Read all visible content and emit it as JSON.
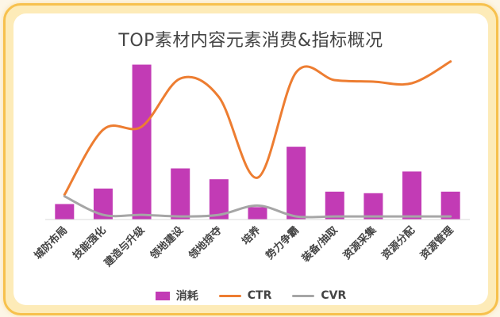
{
  "chart_data": {
    "type": "bar",
    "title": "TOP素材内容元素消费&指标概况",
    "categories": [
      "城防布局",
      "技能强化",
      "建造与升级",
      "领地建设",
      "领地掠夺",
      "培养",
      "势力争霸",
      "装备/抽取",
      "资源采集",
      "资源分配",
      "资源管理"
    ],
    "series": [
      {
        "name": "消耗",
        "kind": "bar",
        "color": "#c23bb5",
        "values": [
          10,
          20,
          100,
          33,
          26,
          8,
          47,
          18,
          17,
          31,
          18
        ]
      },
      {
        "name": "CTR",
        "kind": "line",
        "color": "#ed7d31",
        "values": [
          16,
          58,
          60,
          91,
          79,
          27,
          95,
          90,
          89,
          88,
          102
        ]
      },
      {
        "name": "CVR",
        "kind": "line",
        "color": "#a6a6a6",
        "values": [
          15,
          3,
          3,
          2,
          3,
          9,
          2,
          2,
          2,
          2,
          2
        ]
      }
    ],
    "ylim": [
      0,
      110
    ],
    "grid": false,
    "legend": "bottom"
  }
}
